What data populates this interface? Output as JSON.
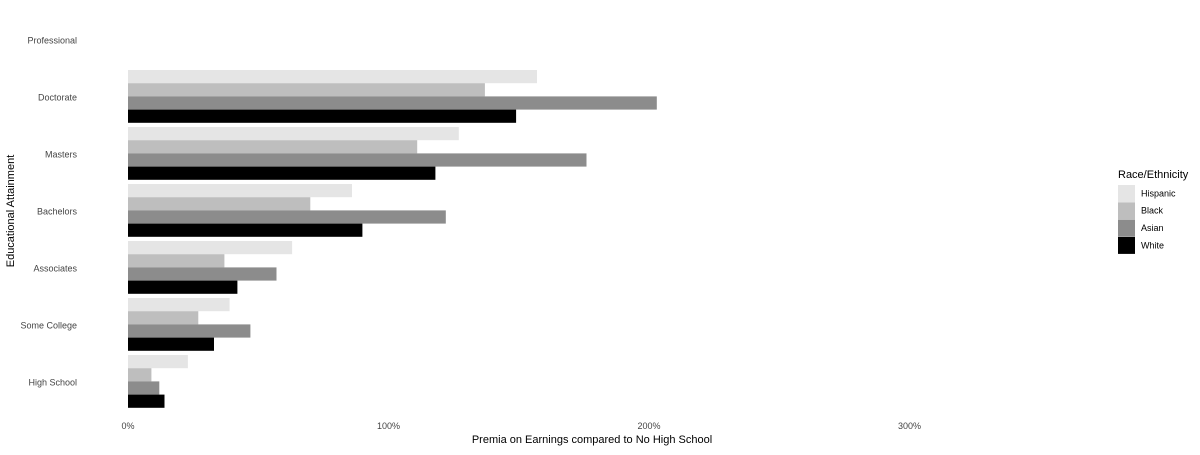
{
  "chart_data": {
    "type": "bar",
    "orientation": "horizontal",
    "categories": [
      "High School",
      "Some College",
      "Associates",
      "Bachelors",
      "Masters",
      "Doctorate",
      "Professional"
    ],
    "series": [
      {
        "name": "Hispanic",
        "color": "#e5e5e5",
        "values": [
          23,
          39,
          63,
          86,
          127,
          157,
          null
        ]
      },
      {
        "name": "Black",
        "color": "#bebebe",
        "values": [
          9,
          27,
          37,
          70,
          111,
          137,
          null
        ]
      },
      {
        "name": "Asian",
        "color": "#8c8c8c",
        "values": [
          12,
          47,
          57,
          122,
          176,
          203,
          null
        ]
      },
      {
        "name": "White",
        "color": "#000000",
        "values": [
          14,
          33,
          42,
          90,
          118,
          149,
          null
        ]
      }
    ],
    "xlabel": "Premia on Earnings compared to No High School",
    "ylabel": "Educational Attainment",
    "xlim": [
      0,
      400
    ],
    "xticks": [
      0,
      100,
      200,
      300
    ],
    "xtick_labels": [
      "0%",
      "100%",
      "200%",
      "300%"
    ],
    "grid": false,
    "legend": {
      "title": "Race/Ethnicity",
      "position": "right"
    }
  }
}
